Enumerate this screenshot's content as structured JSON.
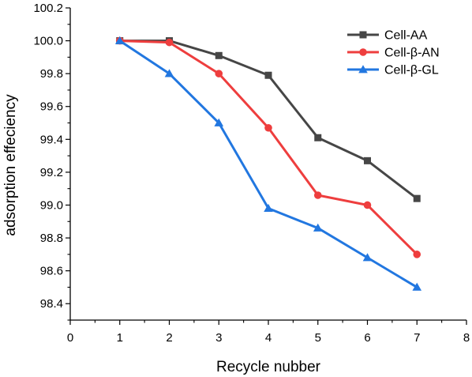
{
  "chart_data": {
    "type": "line",
    "title": "",
    "xlabel": "Recycle nubber",
    "ylabel": "adsorption effeciency",
    "xlim": [
      0,
      8
    ],
    "ylim": [
      98.3,
      100.2
    ],
    "x_ticks": [
      "0",
      "1",
      "2",
      "3",
      "4",
      "5",
      "6",
      "7",
      "8"
    ],
    "y_ticks": [
      "98.4",
      "98.6",
      "98.8",
      "99.0",
      "99.2",
      "99.4",
      "99.6",
      "99.8",
      "100.0",
      "100.2"
    ],
    "grid": false,
    "legend_position": "top-right",
    "x": [
      1,
      2,
      3,
      4,
      5,
      6,
      7
    ],
    "series": [
      {
        "name": "Cell-AA",
        "color": "#464646",
        "marker": "square",
        "values": [
          100.0,
          100.0,
          99.91,
          99.79,
          99.41,
          99.27,
          99.04
        ]
      },
      {
        "name": "Cell-β-AN",
        "color": "#ee3e3e",
        "marker": "circle",
        "values": [
          100.0,
          99.99,
          99.8,
          99.47,
          99.06,
          99.0,
          98.7
        ]
      },
      {
        "name": "Cell-β-GL",
        "color": "#2277e0",
        "marker": "triangle",
        "values": [
          100.0,
          99.8,
          99.5,
          98.98,
          98.86,
          98.68,
          98.5
        ]
      }
    ]
  }
}
